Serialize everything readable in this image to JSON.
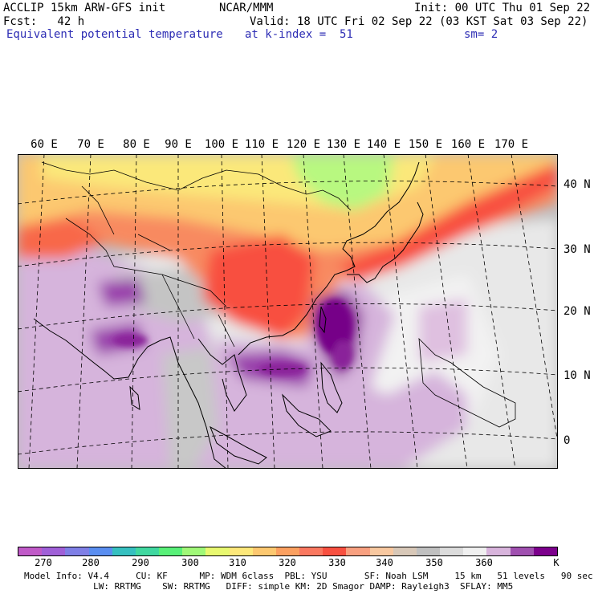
{
  "header": {
    "line1_left": "ACCLIP 15km ARW-GFS init",
    "line1_center": "NCAR/MMM",
    "line1_right": "Init: 00 UTC Thu 01 Sep 22",
    "line2_left": "Fcst:   42 h",
    "line2_right": "Valid: 18 UTC Fri 02 Sep 22 (03 KST Sat 03 Sep 22)",
    "line3_left": "Equivalent potential temperature",
    "line3_center": "at k-index =  51",
    "line3_right": "sm= 2"
  },
  "map": {
    "lon_labels": [
      "60 E",
      "70 E",
      "80 E",
      "90 E",
      "100 E",
      "110 E",
      "120 E",
      "130 E",
      "140 E",
      "150 E",
      "160 E",
      "170 E"
    ],
    "lat_labels": [
      "40 N",
      "30 N",
      "20 N",
      "10 N",
      "0"
    ]
  },
  "colorbar": {
    "colors": [
      "#c05ac8",
      "#a060d8",
      "#7f7fe6",
      "#5a8ef0",
      "#36c0c0",
      "#40d8a0",
      "#58f078",
      "#a0f878",
      "#e8f870",
      "#fde87a",
      "#fcc870",
      "#fba060",
      "#fa7860",
      "#f85040",
      "#f8a080",
      "#f8c8a0",
      "#d8c8b8",
      "#c0c0c0",
      "#dcdcdc",
      "#f0f0f0",
      "#d8b4dc",
      "#a050b0",
      "#7c008c"
    ],
    "labels": [
      "270",
      "280",
      "290",
      "300",
      "310",
      "320",
      "330",
      "340",
      "350",
      "360"
    ],
    "unit": "K"
  },
  "model_info": {
    "line1": "Model Info: V4.4     CU: KF      MP: WDM 6class  PBL: YSU       SF: Noah LSM     15 km   51 levels   90 sec",
    "line2": "             LW: RRTMG    SW: RRTMG   DIFF: simple KM: 2D Smagor DAMP: Rayleigh3  SFLAY: MM5"
  }
}
